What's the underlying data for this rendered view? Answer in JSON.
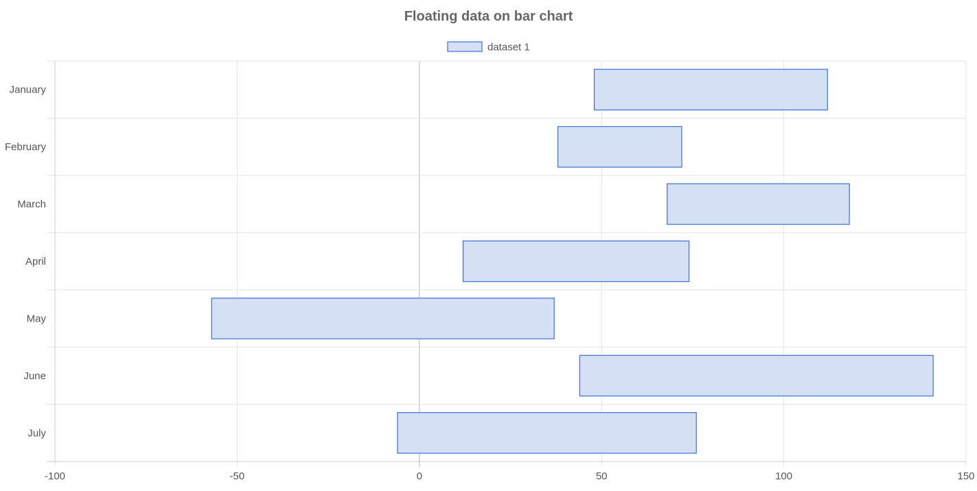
{
  "chart_data": {
    "type": "bar",
    "orientation": "horizontal",
    "floating": true,
    "title": "Floating data on bar chart",
    "categories": [
      "January",
      "February",
      "March",
      "April",
      "May",
      "June",
      "July"
    ],
    "series": [
      {
        "name": "dataset 1",
        "ranges": [
          [
            48,
            112
          ],
          [
            38,
            72
          ],
          [
            68,
            118
          ],
          [
            12,
            74
          ],
          [
            -57,
            37
          ],
          [
            44,
            141
          ],
          [
            -6,
            76
          ]
        ]
      }
    ],
    "xlim": [
      -100,
      150
    ],
    "xticks": [
      -100,
      -50,
      0,
      50,
      100,
      150
    ],
    "grid": true,
    "legend_position": "top",
    "colors": {
      "fill": "#d5e0f4",
      "border": "#3a6fd6",
      "grid": "#e3e3e3",
      "zero_line": "#b3b3b3",
      "text": "#555555",
      "title": "#666666"
    }
  }
}
